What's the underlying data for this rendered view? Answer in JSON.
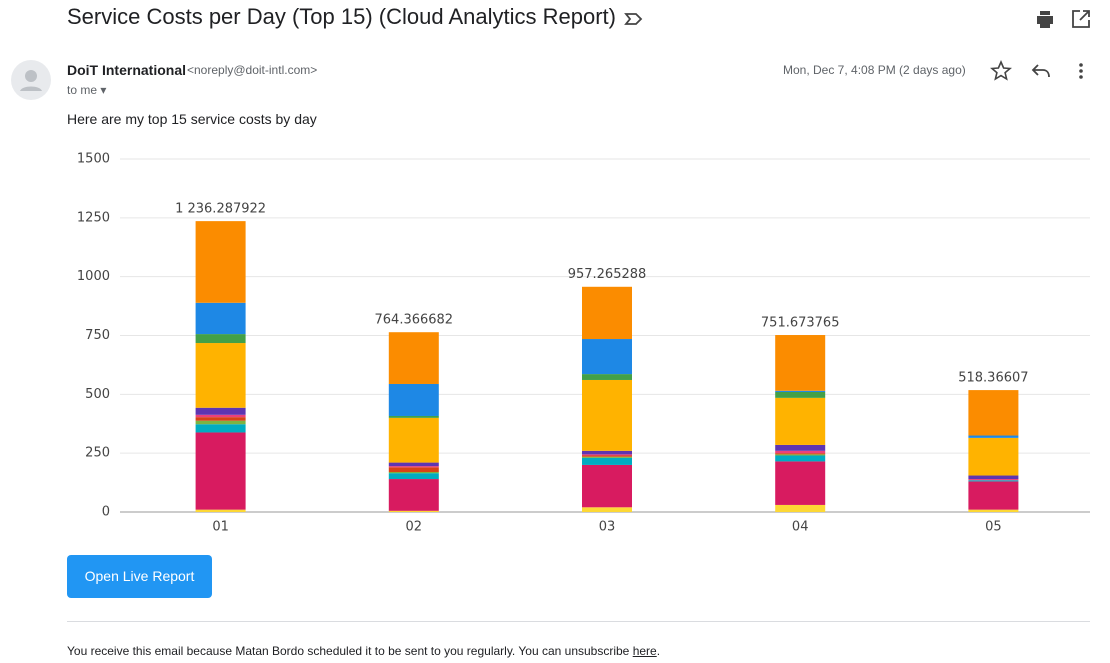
{
  "header": {
    "subject": "Service Costs per Day (Top 15) (Cloud Analytics Report)"
  },
  "message": {
    "sender_name": "DoiT International",
    "sender_email": "<noreply@doit-intl.com>",
    "recipient": "to me",
    "date": "Mon, Dec 7, 4:08 PM (2 days ago)",
    "intro": "Here are my top 15 service costs by day",
    "button": "Open Live Report",
    "footer": "You receive this email because Matan Bordo scheduled it to be sent to you regularly. You can unsubscribe ",
    "footer_link": "here",
    "footer_end": "."
  },
  "chart_data": {
    "type": "stacked_bar",
    "categories": [
      "01",
      "02",
      "03",
      "04",
      "05"
    ],
    "series": [
      {
        "color": "#fdd835",
        "values": [
          10,
          5,
          20,
          30,
          10
        ]
      },
      {
        "color": "#d81b60",
        "values": [
          328,
          135,
          180,
          185,
          120
        ]
      },
      {
        "color": "#00acc1",
        "values": [
          35,
          25,
          30,
          25,
          5
        ]
      },
      {
        "color": "#7cb342",
        "values": [
          15,
          5,
          5,
          5,
          0
        ]
      },
      {
        "color": "#d84315",
        "values": [
          15,
          20,
          5,
          5,
          0
        ]
      },
      {
        "color": "#ec407a",
        "values": [
          10,
          5,
          5,
          10,
          5
        ]
      },
      {
        "color": "#5e35b1",
        "values": [
          30,
          15,
          15,
          25,
          15
        ]
      },
      {
        "color": "#ffb300",
        "values": [
          275,
          190,
          301,
          200,
          160
        ]
      },
      {
        "color": "#43a047",
        "values": [
          38,
          8,
          25,
          25,
          0
        ]
      },
      {
        "color": "#1e88e5",
        "values": [
          133,
          136,
          149,
          5,
          10
        ]
      },
      {
        "color": "#fb8c00",
        "values": [
          347,
          220,
          222,
          237,
          193
        ]
      }
    ],
    "totals": [
      1236.287922,
      764.366682,
      957.265288,
      751.673765,
      518.36607
    ],
    "total_labels": [
      "1 236.287922",
      "764.366682",
      "957.265288",
      "751.673765",
      "518.36607"
    ],
    "ylim": [
      0,
      1500
    ],
    "yticks": [
      0,
      250,
      500,
      750,
      1000,
      1250,
      1500
    ],
    "grid": true
  }
}
